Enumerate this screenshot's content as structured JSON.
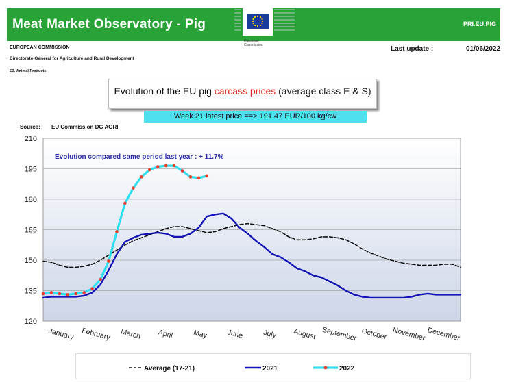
{
  "header": {
    "title": "Meat Market Observatory - Pig",
    "code": "PRI.EU.PIG",
    "logo_text": "European Commission",
    "green": "#29a337"
  },
  "meta": {
    "org": "EUROPEAN COMMISSION",
    "dg": "Directorate-General for Agriculture and Rural Development",
    "unit": "E3. Animal Products",
    "last_update_label": "Last update :",
    "last_update_value": "01/06/2022"
  },
  "banner": {
    "title_prefix": "Evolution of the EU pig ",
    "title_highlight": "carcass prices",
    "title_suffix": " (average class E & S)",
    "price_text": "Week 21 latest price ==>  191.47 EUR/100 kg/cw"
  },
  "source": {
    "label": "Source:",
    "value": "EU Commission DG AGRI"
  },
  "chart_data": {
    "type": "line",
    "annotation": "Evolution compared same period last year : + 11.7%",
    "ylim": [
      120,
      210
    ],
    "yticks": [
      120,
      135,
      150,
      165,
      180,
      195,
      210
    ],
    "xlim": [
      1,
      52
    ],
    "grid": "horizontal",
    "legend_position": "bottom",
    "categories": [
      "January",
      "February",
      "March",
      "April",
      "May",
      "June",
      "July",
      "August",
      "September",
      "October",
      "November",
      "December"
    ],
    "series": [
      {
        "name": "Average (17-21)",
        "style": "dashed",
        "color": "#111111",
        "x": [
          1,
          2,
          3,
          4,
          5,
          6,
          7,
          8,
          9,
          10,
          11,
          12,
          13,
          14,
          15,
          16,
          17,
          18,
          19,
          20,
          21,
          22,
          23,
          24,
          25,
          26,
          27,
          28,
          29,
          30,
          31,
          32,
          33,
          34,
          35,
          36,
          37,
          38,
          39,
          40,
          41,
          42,
          43,
          44,
          45,
          46,
          47,
          48,
          49,
          50,
          51,
          52
        ],
        "values": [
          149.5,
          149,
          147.5,
          146.5,
          146.5,
          147,
          148,
          150,
          152.5,
          155,
          157.5,
          159.5,
          161,
          162.5,
          164,
          165.5,
          166.5,
          166.5,
          165.5,
          164.5,
          163.5,
          164,
          165.5,
          166.5,
          167.5,
          168,
          167.5,
          167,
          165.5,
          164,
          161.5,
          160,
          160,
          160.5,
          161.5,
          161.5,
          161,
          160,
          158,
          155.5,
          153.5,
          152,
          150.5,
          149.5,
          148.5,
          148,
          147.5,
          147.5,
          147.5,
          148,
          148,
          146.5
        ]
      },
      {
        "name": "2021",
        "style": "solid",
        "color": "#1414b4",
        "x": [
          1,
          2,
          3,
          4,
          5,
          6,
          7,
          8,
          9,
          10,
          11,
          12,
          13,
          14,
          15,
          16,
          17,
          18,
          19,
          20,
          21,
          22,
          23,
          24,
          25,
          26,
          27,
          28,
          29,
          30,
          31,
          32,
          33,
          34,
          35,
          36,
          37,
          38,
          39,
          40,
          41,
          42,
          43,
          44,
          45,
          46,
          47,
          48,
          49,
          50,
          51,
          52
        ],
        "values": [
          131.5,
          132,
          132,
          132,
          132,
          132.5,
          134,
          138,
          145,
          153,
          159,
          161,
          162.5,
          163,
          163.5,
          163,
          161.5,
          161.5,
          163,
          166,
          171.5,
          172.5,
          173,
          170.5,
          166,
          163,
          159.5,
          156.5,
          153,
          151.5,
          149,
          146,
          144.5,
          142.5,
          141.5,
          139.5,
          137.5,
          135,
          133,
          132,
          131.5,
          131.5,
          131.5,
          131.5,
          131.5,
          132,
          133,
          133.5,
          133,
          133,
          133,
          133
        ]
      },
      {
        "name": "2022",
        "style": "solid-markers",
        "color": "#30e0f0",
        "marker_color": "#e8402a",
        "x": [
          1,
          2,
          3,
          4,
          5,
          6,
          7,
          8,
          9,
          10,
          11,
          12,
          13,
          14,
          15,
          16,
          17,
          18,
          19,
          20,
          21
        ],
        "values": [
          133.5,
          134,
          133.5,
          133,
          133.5,
          134,
          136,
          140.5,
          149.5,
          164,
          178,
          185.5,
          191,
          194.5,
          196,
          196.5,
          196.5,
          194,
          191,
          190.5,
          191.5
        ]
      }
    ]
  }
}
